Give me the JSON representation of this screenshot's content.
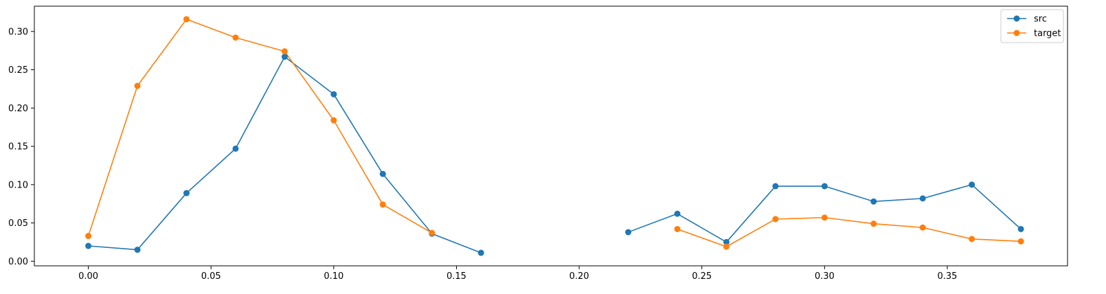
{
  "chart_data": {
    "type": "line",
    "title": "",
    "xlabel": "",
    "ylabel": "",
    "xlim": [
      -0.022,
      0.399
    ],
    "ylim": [
      -0.006,
      0.333
    ],
    "xticks": [
      0.0,
      0.05,
      0.1,
      0.15,
      0.2,
      0.25,
      0.3,
      0.35
    ],
    "xtick_labels": [
      "0.00",
      "0.05",
      "0.10",
      "0.15",
      "0.20",
      "0.25",
      "0.30",
      "0.35"
    ],
    "yticks": [
      0.0,
      0.05,
      0.1,
      0.15,
      0.2,
      0.25,
      0.3
    ],
    "ytick_labels": [
      "0.00",
      "0.05",
      "0.10",
      "0.15",
      "0.20",
      "0.25",
      "0.30"
    ],
    "grid": false,
    "legend_position": "top-right",
    "series": [
      {
        "name": "src",
        "color": "#1f77b4",
        "marker": "circle",
        "x": [
          0.0,
          0.02,
          0.04,
          0.06,
          0.08,
          0.1,
          0.12,
          0.14,
          0.16,
          0.18,
          0.2,
          0.22,
          0.24,
          0.26,
          0.28,
          0.3,
          0.32,
          0.34,
          0.36,
          0.38
        ],
        "y": [
          0.02,
          0.015,
          0.089,
          0.147,
          0.267,
          0.218,
          0.114,
          0.036,
          0.011,
          null,
          null,
          0.038,
          0.062,
          0.025,
          0.098,
          0.098,
          0.078,
          0.082,
          0.1,
          0.042
        ]
      },
      {
        "name": "target",
        "color": "#ff7f0e",
        "marker": "circle",
        "x": [
          0.0,
          0.02,
          0.04,
          0.06,
          0.08,
          0.1,
          0.12,
          0.14,
          0.16,
          0.18,
          0.2,
          0.22,
          0.24,
          0.26,
          0.28,
          0.3,
          0.32,
          0.34,
          0.36,
          0.38
        ],
        "y": [
          0.033,
          0.229,
          0.316,
          0.292,
          0.274,
          0.184,
          0.074,
          0.037,
          null,
          null,
          null,
          null,
          0.042,
          0.019,
          0.055,
          0.057,
          0.049,
          0.044,
          0.029,
          0.026
        ]
      }
    ]
  }
}
